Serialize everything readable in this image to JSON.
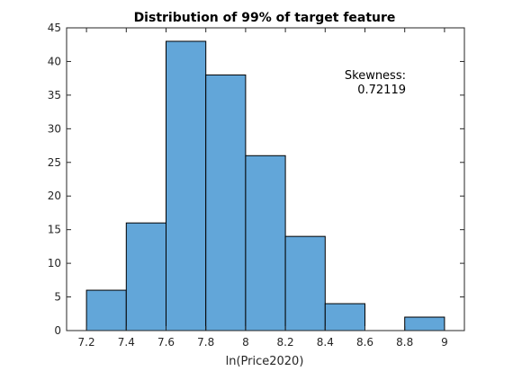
{
  "chart_data": {
    "type": "bar",
    "title": "Distribution of 99% of target feature",
    "xlabel": "ln(Price2020)",
    "ylabel": "",
    "xlim": [
      7.1,
      9.1
    ],
    "ylim": [
      0,
      45
    ],
    "x_ticks": [
      "7.2",
      "7.4",
      "7.6",
      "7.8",
      "8",
      "8.2",
      "8.4",
      "8.6",
      "8.8",
      "9"
    ],
    "y_ticks": [
      "0",
      "5",
      "10",
      "15",
      "20",
      "25",
      "30",
      "35",
      "40",
      "45"
    ],
    "bins": [
      {
        "start": 7.2,
        "end": 7.4,
        "value": 6
      },
      {
        "start": 7.4,
        "end": 7.6,
        "value": 16
      },
      {
        "start": 7.6,
        "end": 7.8,
        "value": 43
      },
      {
        "start": 7.8,
        "end": 8.0,
        "value": 38
      },
      {
        "start": 8.0,
        "end": 8.2,
        "value": 26
      },
      {
        "start": 8.2,
        "end": 8.4,
        "value": 14
      },
      {
        "start": 8.4,
        "end": 8.6,
        "value": 4
      },
      {
        "start": 8.6,
        "end": 8.8,
        "value": 0
      },
      {
        "start": 8.8,
        "end": 9.0,
        "value": 2
      }
    ],
    "bar_color": "#62a6d9",
    "edge_color": "#000000",
    "annotation": {
      "line1": "Skewness:",
      "line2": "0.72119"
    },
    "grid": false
  }
}
